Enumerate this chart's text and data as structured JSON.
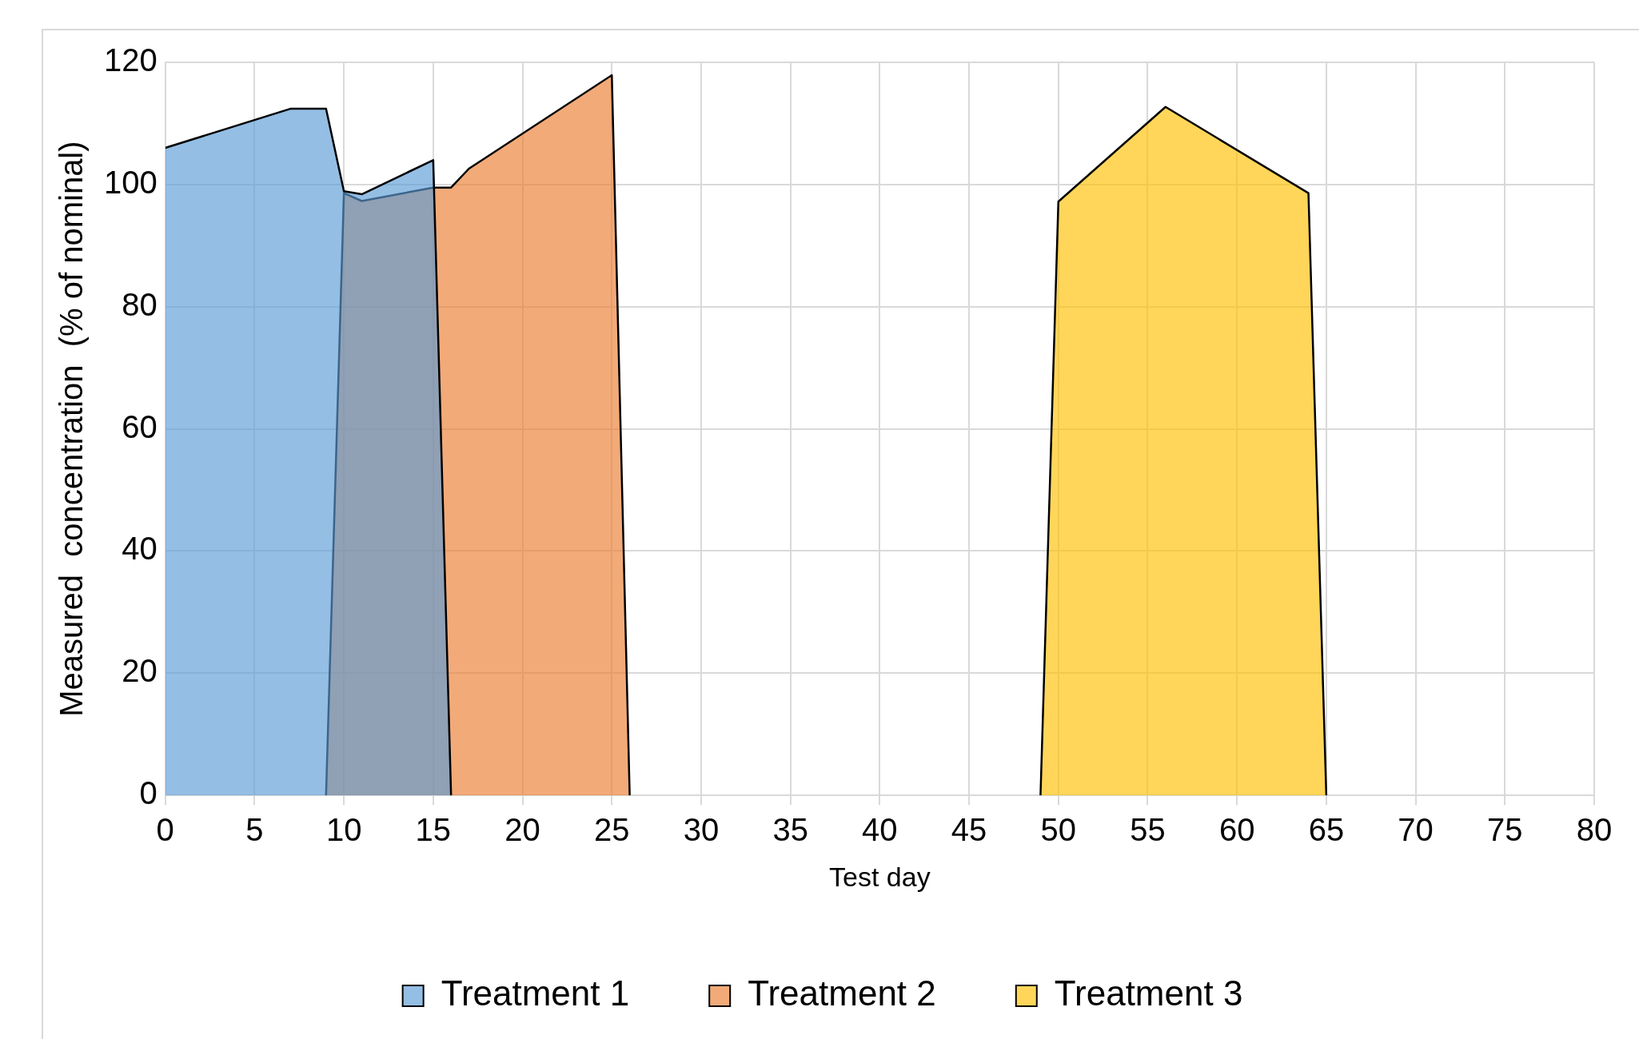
{
  "chart_data": {
    "type": "area",
    "xlabel": "Test day",
    "ylabel": "Measured  concentration  (% of nominal)",
    "xlim": [
      0,
      80
    ],
    "xticks": [
      0,
      5,
      10,
      15,
      20,
      25,
      30,
      35,
      40,
      45,
      50,
      55,
      60,
      65,
      70,
      75,
      80
    ],
    "ylim": [
      0,
      120
    ],
    "yticks": [
      0,
      20,
      40,
      60,
      80,
      100,
      120
    ],
    "grid": true,
    "legend": "bottom",
    "marker": "none",
    "line_style": "solid",
    "series": [
      {
        "name": "Treatment 1",
        "color": "#5b9bd5",
        "x": [
          0,
          7,
          9,
          10,
          11,
          15,
          16
        ],
        "values": [
          106,
          112.4,
          112.4,
          98.9,
          98.4,
          104,
          0
        ]
      },
      {
        "name": "Treatment 2",
        "color": "#ed7d31",
        "x": [
          9,
          10,
          11,
          15,
          16,
          17,
          25,
          26
        ],
        "values": [
          0,
          98.6,
          97.3,
          99.5,
          99.5,
          102.6,
          117.9,
          0
        ]
      },
      {
        "name": "Treatment 3",
        "color": "#ffc000",
        "x": [
          49,
          50,
          56,
          64,
          65
        ],
        "values": [
          0,
          97.2,
          112.7,
          98.6,
          0
        ]
      }
    ]
  }
}
